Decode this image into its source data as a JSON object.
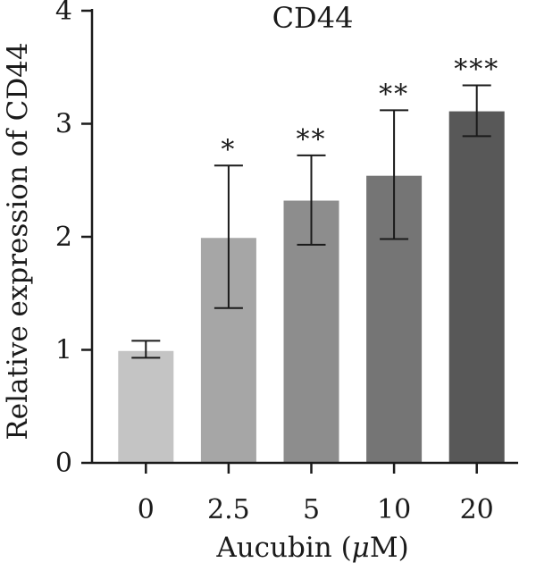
{
  "chart_data": {
    "type": "bar",
    "title": "CD44",
    "xlabel_main": "Aucubin (",
    "xlabel_mu": "μ",
    "xlabel_unit": "M)",
    "ylabel": "Relative expression of CD44",
    "ylim": [
      0,
      4
    ],
    "yticks": [
      0,
      1,
      2,
      3,
      4
    ],
    "categories": [
      "0",
      "2.5",
      "5",
      "10",
      "20"
    ],
    "values": [
      0.99,
      1.99,
      2.32,
      2.54,
      3.11
    ],
    "error": [
      [
        0.93,
        1.08
      ],
      [
        1.37,
        2.63
      ],
      [
        1.93,
        2.72
      ],
      [
        1.98,
        3.12
      ],
      [
        2.89,
        3.34
      ]
    ],
    "significance": [
      "",
      "*",
      "**",
      "**",
      "***"
    ],
    "colors": [
      "#c4c4c4",
      "#a6a6a6",
      "#8d8d8d",
      "#757575",
      "#585858"
    ],
    "grid": false,
    "legend": "none"
  }
}
